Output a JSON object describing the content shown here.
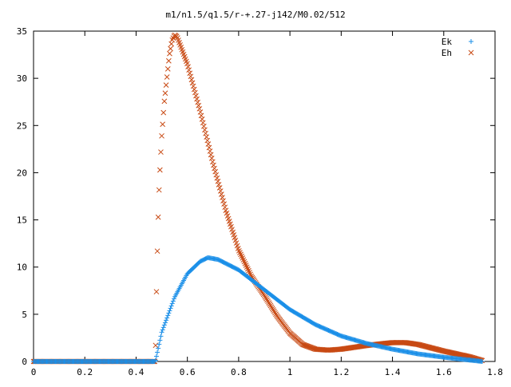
{
  "chart_data": {
    "type": "scatter",
    "title": "m1/n1.5/q1.5/r-+.27-j142/M0.02/512",
    "xlabel": "",
    "ylabel": "",
    "xlim": [
      0,
      1.8
    ],
    "ylim": [
      0,
      35
    ],
    "x_ticks": [
      "0",
      "0.2",
      "0.4",
      "0.6",
      "0.8",
      "1",
      "1.2",
      "1.4",
      "1.6",
      "1.8"
    ],
    "y_ticks": [
      "0",
      "5",
      "10",
      "15",
      "20",
      "25",
      "30",
      "35"
    ],
    "x_range": [
      0,
      1.75
    ],
    "n_points": 512,
    "onset_x": 0.475,
    "grid": false,
    "legend_position": "top-right",
    "series": [
      {
        "name": "Ek",
        "marker": "plus",
        "color": "#1a8fe8",
        "keypoints": [
          [
            0.475,
            0
          ],
          [
            0.5,
            3.1
          ],
          [
            0.55,
            6.8
          ],
          [
            0.6,
            9.3
          ],
          [
            0.65,
            10.6
          ],
          [
            0.68,
            11.0
          ],
          [
            0.72,
            10.8
          ],
          [
            0.8,
            9.7
          ],
          [
            0.9,
            7.6
          ],
          [
            1.0,
            5.5
          ],
          [
            1.1,
            3.9
          ],
          [
            1.2,
            2.7
          ],
          [
            1.3,
            1.9
          ],
          [
            1.4,
            1.3
          ],
          [
            1.5,
            0.8
          ],
          [
            1.6,
            0.45
          ],
          [
            1.7,
            0.15
          ],
          [
            1.75,
            0
          ]
        ]
      },
      {
        "name": "Eh",
        "marker": "cross",
        "color": "#c84a14",
        "keypoints": [
          [
            0.475,
            0
          ],
          [
            0.48,
            8.3
          ],
          [
            0.485,
            14.2
          ],
          [
            0.49,
            18.4
          ],
          [
            0.495,
            21.4
          ],
          [
            0.5,
            23.9
          ],
          [
            0.51,
            27.5
          ],
          [
            0.52,
            30.0
          ],
          [
            0.53,
            32.5
          ],
          [
            0.54,
            34.0
          ],
          [
            0.55,
            34.6
          ],
          [
            0.56,
            34.4
          ],
          [
            0.6,
            31.5
          ],
          [
            0.65,
            26.5
          ],
          [
            0.7,
            21.0
          ],
          [
            0.75,
            16.0
          ],
          [
            0.8,
            11.8
          ],
          [
            0.85,
            9.0
          ],
          [
            0.9,
            7.0
          ],
          [
            0.95,
            4.8
          ],
          [
            1.0,
            3.0
          ],
          [
            1.05,
            1.8
          ],
          [
            1.1,
            1.3
          ],
          [
            1.15,
            1.2
          ],
          [
            1.2,
            1.3
          ],
          [
            1.3,
            1.7
          ],
          [
            1.4,
            2.0
          ],
          [
            1.45,
            2.0
          ],
          [
            1.5,
            1.8
          ],
          [
            1.6,
            1.1
          ],
          [
            1.7,
            0.5
          ],
          [
            1.75,
            0.1
          ]
        ]
      }
    ]
  }
}
